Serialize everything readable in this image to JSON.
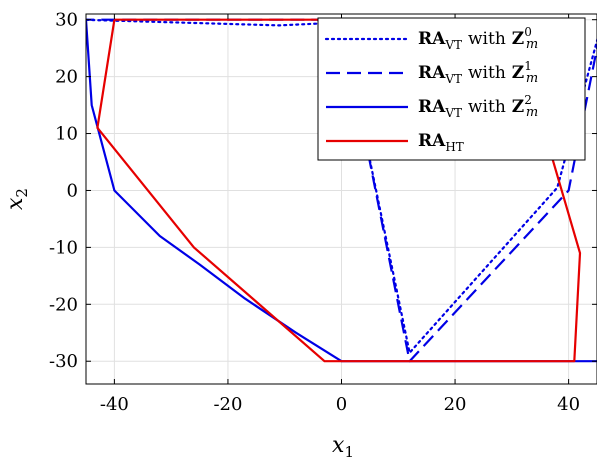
{
  "chart_data": {
    "type": "line",
    "xlabel_var": "x",
    "xlabel_sub": "1",
    "ylabel_var": "x",
    "ylabel_sub": "2",
    "xlim": [
      -45,
      45
    ],
    "ylim": [
      -34,
      31
    ],
    "xticks": [
      -40,
      -20,
      0,
      20,
      40
    ],
    "yticks": [
      30,
      20,
      10,
      0,
      -10,
      -20,
      -30
    ],
    "grid": true,
    "legend_position": "top-right",
    "series": [
      {
        "name_base": "RA",
        "name_sub": "VT",
        "name_mid": "with",
        "name_set": "Z",
        "name_sup": "0",
        "name_var": "m",
        "color": "#0000e6",
        "dash": "dotted",
        "x": [
          -46,
          -11,
          0,
          12,
          38,
          46
        ],
        "y": [
          30,
          29,
          29.5,
          -28.5,
          0.5,
          30
        ]
      },
      {
        "name_base": "RA",
        "name_sub": "VT",
        "name_mid": "with",
        "name_set": "Z",
        "name_sup": "1",
        "name_var": "m",
        "color": "#0000e6",
        "dash": "dashed",
        "x": [
          -46,
          -12,
          0,
          12,
          40,
          46
        ],
        "y": [
          30,
          30,
          30,
          -30,
          0,
          30
        ]
      },
      {
        "name_base": "RA",
        "name_sub": "VT",
        "name_mid": "with",
        "name_set": "Z",
        "name_sup": "2",
        "name_var": "m",
        "color": "#0000e6",
        "dash": "solid",
        "x": [
          -45,
          -44,
          -40,
          -32,
          -25,
          -17,
          -8,
          0,
          40,
          45
        ],
        "y": [
          30,
          15,
          0,
          -8,
          -13,
          -19,
          -25,
          -30,
          -30,
          -30
        ]
      },
      {
        "name_base": "RA",
        "name_sub": "HT",
        "color": "#e60000",
        "dash": "solid",
        "x": [
          -40,
          -43,
          -26,
          -3,
          41,
          42,
          30,
          -40
        ],
        "y": [
          30,
          11,
          -10,
          -30,
          -30,
          -11,
          30,
          30
        ]
      }
    ]
  }
}
